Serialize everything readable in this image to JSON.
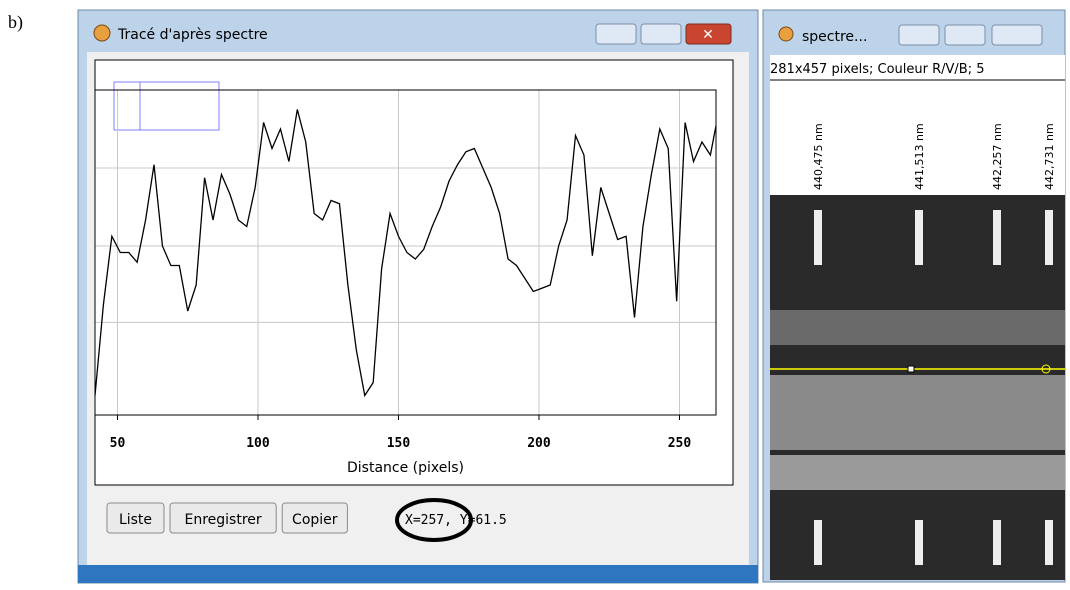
{
  "label": "b)",
  "plot_window": {
    "title": "Tracé d'après spectre",
    "buttons": [
      "Liste",
      "Enregistrer",
      "Copier"
    ],
    "status": "X=257, Y=61.5"
  },
  "image_window": {
    "title": "spectre...",
    "info": "281x457 pixels; Couleur R/V/B; 5",
    "wavelength_labels": [
      "440,475 nm",
      "441,513 nm",
      "442,257 nm",
      "442,731 nm"
    ]
  },
  "chart_data": {
    "type": "line",
    "x_label": "Distance (pixels)",
    "color": "#000000",
    "grid": true,
    "xlim": [
      42,
      263
    ],
    "ylim": [
      0,
      100
    ],
    "xticks": [
      50,
      100,
      150,
      200,
      250
    ],
    "ygrid_lines": [
      28.5,
      52,
      76
    ],
    "x": [
      42,
      45,
      48,
      51,
      54,
      57,
      60,
      63,
      66,
      69,
      72,
      75,
      78,
      81,
      84,
      87,
      90,
      93,
      96,
      99,
      102,
      105,
      108,
      111,
      114,
      117,
      120,
      123,
      126,
      129,
      132,
      135,
      138,
      141,
      144,
      147,
      150,
      153,
      156,
      159,
      162,
      165,
      168,
      171,
      174,
      177,
      180,
      183,
      186,
      189,
      192,
      195,
      198,
      201,
      204,
      207,
      210,
      213,
      216,
      219,
      222,
      225,
      228,
      231,
      234,
      237,
      240,
      243,
      246,
      249,
      252,
      255,
      258,
      261,
      263
    ],
    "values": [
      6,
      34,
      55,
      50,
      50,
      47,
      60,
      77,
      52,
      46,
      46,
      32,
      40,
      73,
      60,
      74,
      68,
      60,
      58,
      70,
      90,
      82,
      88,
      78,
      94,
      84,
      62,
      60,
      66,
      65,
      40,
      20,
      6,
      10,
      45,
      62,
      55,
      50,
      48,
      51,
      58,
      64,
      72,
      77,
      81,
      82,
      76,
      70,
      62,
      48,
      46,
      42,
      38,
      39,
      40,
      52,
      60,
      86,
      80,
      49,
      70,
      62,
      54,
      55,
      30,
      58,
      74,
      88,
      82,
      35,
      90,
      78,
      84,
      80,
      89
    ]
  }
}
